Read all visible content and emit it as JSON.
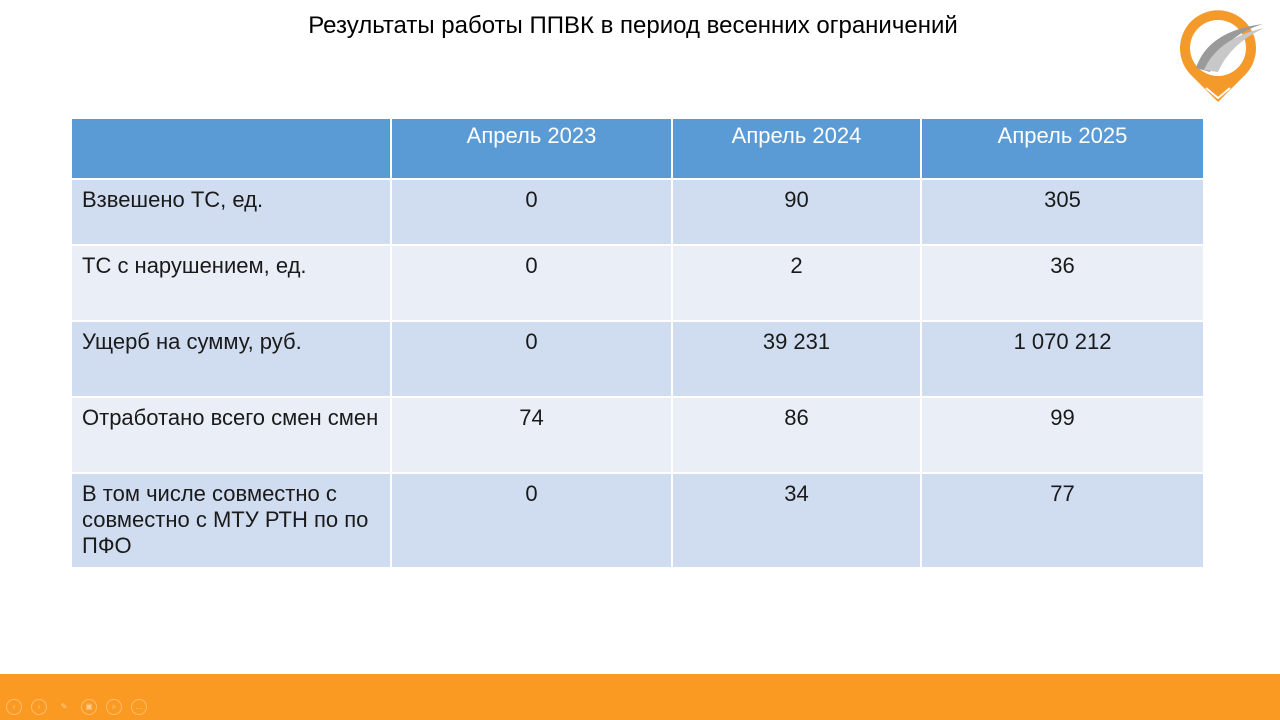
{
  "title": "Результаты работы ППВК в период весенних ограничений",
  "colors": {
    "header": "#5b9bd5",
    "row_dark": "#d0dcef",
    "row_light": "#e9eef7",
    "footer": "#fb9a23",
    "logo": "#f39a2b"
  },
  "table": {
    "headers": [
      "",
      "Апрель 2023",
      "Апрель 2024",
      "Апрель 2025"
    ],
    "rows": [
      {
        "label": "Взвешено ТС, ед.",
        "values": [
          "0",
          "90",
          "305"
        ]
      },
      {
        "label": "ТС с нарушением, ед.",
        "values": [
          "0",
          "2",
          "36"
        ]
      },
      {
        "label": "Ущерб на сумму, руб.",
        "values": [
          "0",
          "39 231",
          "1 070 212"
        ]
      },
      {
        "label": "Отработано всего смен смен",
        "values": [
          "74",
          "86",
          "99"
        ]
      },
      {
        "label": "В том числе совместно с совместно с МТУ РТН по по ПФО",
        "values": [
          "0",
          "34",
          "77"
        ]
      }
    ]
  },
  "controls": [
    "prev-icon",
    "next-icon",
    "pen-icon",
    "slides-icon",
    "zoom-icon",
    "more-icon"
  ]
}
